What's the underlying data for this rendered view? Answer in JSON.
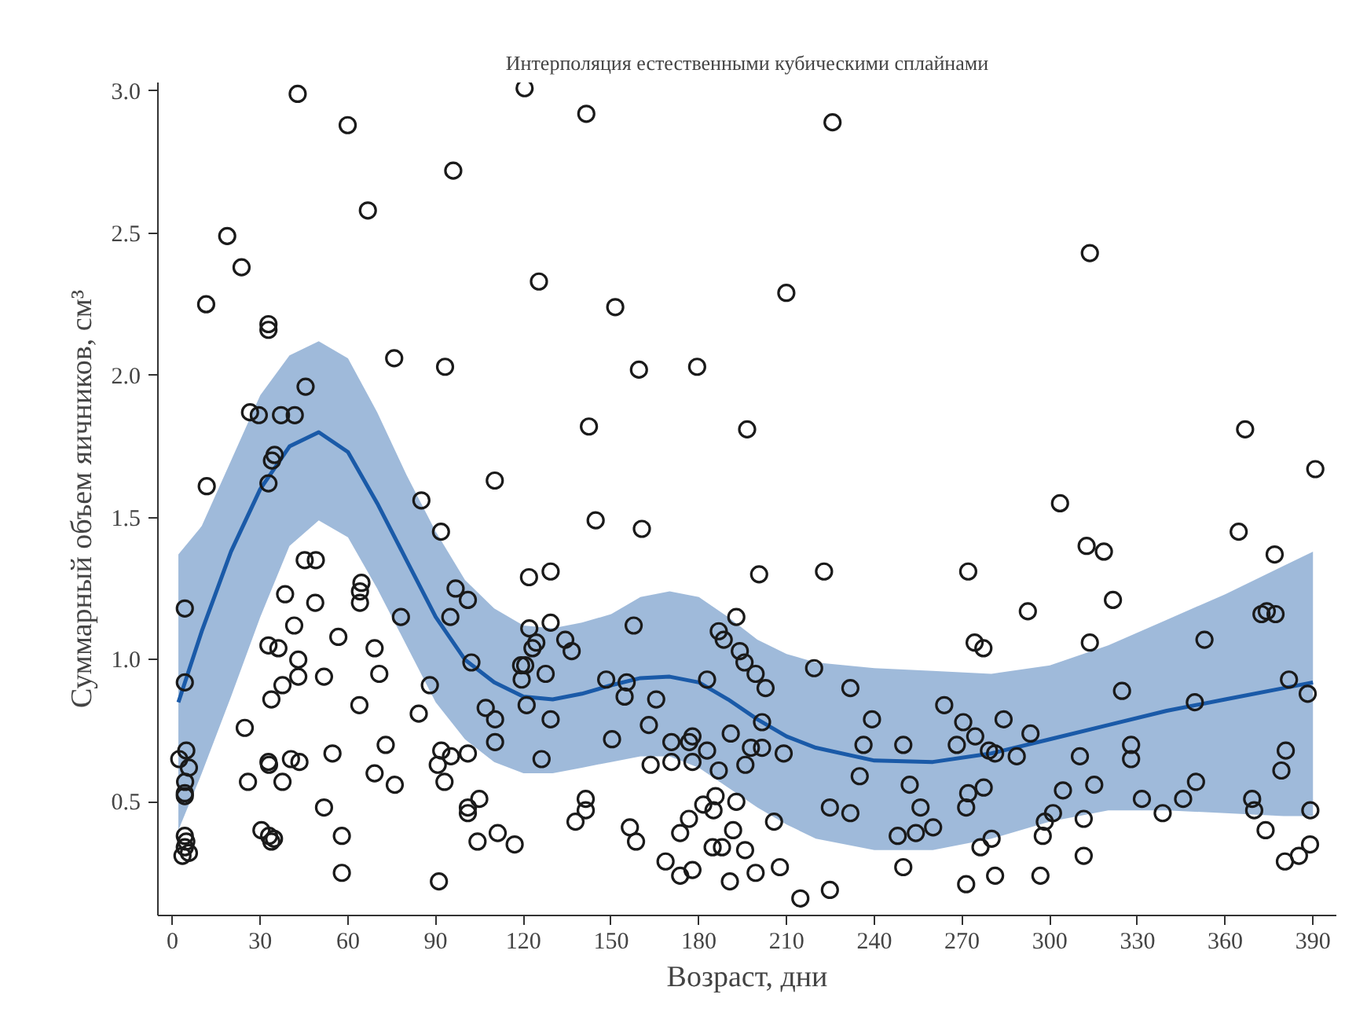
{
  "chart_data": {
    "type": "scatter",
    "title": "Интерполяция естественными кубическими сплайнами",
    "xlabel": "Возраст, дни",
    "ylabel": "Суммарный объем яичников, см³",
    "xlim": [
      -5,
      398
    ],
    "ylim": [
      0.1,
      3.03
    ],
    "xticks": [
      0,
      30,
      60,
      90,
      120,
      150,
      180,
      210,
      240,
      270,
      300,
      330,
      360,
      390
    ],
    "yticks": [
      {
        "value": 0.5,
        "label": "0.5"
      },
      {
        "value": 1,
        "label": "1.0"
      },
      {
        "value": 1.5,
        "label": "1.5"
      },
      {
        "value": 2,
        "label": "2.0"
      },
      {
        "value": 2.5,
        "label": "2.5"
      },
      {
        "value": 3,
        "label": "3.0"
      }
    ],
    "grid": false,
    "series": [
      {
        "type": "line",
        "color": "#1a5aa8",
        "marker": "none",
        "line_style": "solid",
        "x": [
          2,
          10,
          20,
          30,
          40,
          50,
          60,
          70,
          80,
          90,
          100,
          110,
          120,
          130,
          140,
          150,
          160,
          170,
          180,
          190,
          200,
          210,
          220,
          240,
          260,
          280,
          300,
          320,
          340,
          360,
          380,
          390
        ],
        "values": [
          0.85,
          1.1,
          1.38,
          1.6,
          1.75,
          1.8,
          1.73,
          1.55,
          1.35,
          1.15,
          1.0,
          0.92,
          0.87,
          0.86,
          0.88,
          0.91,
          0.935,
          0.94,
          0.92,
          0.86,
          0.79,
          0.73,
          0.69,
          0.645,
          0.64,
          0.67,
          0.72,
          0.77,
          0.82,
          0.86,
          0.9,
          0.92
        ],
        "upper": [
          1.37,
          1.47,
          1.7,
          1.93,
          2.07,
          2.12,
          2.06,
          1.87,
          1.65,
          1.45,
          1.28,
          1.18,
          1.12,
          1.11,
          1.13,
          1.16,
          1.22,
          1.24,
          1.22,
          1.15,
          1.07,
          1.02,
          0.99,
          0.97,
          0.96,
          0.95,
          0.98,
          1.05,
          1.14,
          1.23,
          1.33,
          1.38
        ],
        "lower": [
          0.4,
          0.6,
          0.87,
          1.15,
          1.4,
          1.49,
          1.43,
          1.25,
          1.05,
          0.85,
          0.72,
          0.64,
          0.6,
          0.6,
          0.62,
          0.64,
          0.66,
          0.66,
          0.62,
          0.55,
          0.48,
          0.42,
          0.37,
          0.33,
          0.33,
          0.37,
          0.43,
          0.47,
          0.47,
          0.46,
          0.45,
          0.45
        ]
      },
      {
        "color": "#1a1a1a",
        "marker": "circle",
        "x": [
          42.8,
          59.9,
          120.4,
          96,
          66.8,
          18.7,
          23.6,
          125.3,
          11.5,
          32.8,
          32.8,
          75.8,
          93.2,
          45.5,
          26.5,
          29.5,
          37.1,
          41.8,
          34.9,
          34,
          32.8,
          11.7,
          110.2,
          85.1,
          141.5,
          225.7,
          151.4,
          209.9,
          159.5,
          179.4,
          142.4,
          196.5,
          313.7,
          366.8,
          390.8,
          303.5,
          91.8,
          4.2,
          45.2,
          49,
          38.5,
          48.8,
          64.6,
          64.1,
          64.1,
          78.1,
          96.8,
          101,
          95,
          41.6,
          32.8,
          36.2,
          56.7,
          43,
          69.1,
          102.2,
          4.2,
          43,
          37.6,
          51.8,
          70.7,
          33.8,
          63.9,
          88,
          84.2,
          107.1,
          110.3,
          110.3,
          24.7,
          119.2,
          121.1,
          121.9,
          122,
          124.4,
          123.1,
          120.6,
          119.4,
          126.2,
          2.3,
          4.7,
          5.6,
          4.3,
          4.2,
          4.2,
          32.8,
          33,
          40.5,
          43.4,
          25.8,
          37.6,
          54.7,
          72.9,
          69.1,
          76,
          91.9,
          95.2,
          101,
          90.7,
          93,
          51.8,
          30.4,
          33,
          33.8,
          34.7,
          57.9,
          57.9,
          101,
          101,
          104.9,
          104.3,
          111.2,
          117,
          91.1,
          4.2,
          4.7,
          3.4,
          5.6,
          4.2,
          144.7,
          160.5,
          129.3,
          200.6,
          222.8,
          192.8,
          129.3,
          134.3,
          136.5,
          157.7,
          127.6,
          129.3,
          148.3,
          155.3,
          154.6,
          165.4,
          150.3,
          162.9,
          163.5,
          170.6,
          170.6,
          176.7,
          177.8,
          177.8,
          182.8,
          182.8,
          186.8,
          186.8,
          188.5,
          194,
          195.6,
          199.4,
          202.8,
          201.6,
          190.9,
          197.8,
          201.6,
          195.9,
          209,
          219.4,
          231.8,
          239.2,
          236.3,
          249.9,
          252.1,
          255.8,
          235,
          224.8,
          231.8,
          248,
          254.2,
          249.9,
          141.3,
          141.3,
          137.8,
          156.4,
          158.5,
          168.6,
          173.6,
          177.8,
          173.6,
          176.6,
          181.5,
          185,
          185.7,
          192.8,
          191.7,
          184.7,
          187.9,
          195.8,
          190.6,
          199.4,
          205.7,
          207.7,
          214.7,
          224.8,
          272.1,
          312.6,
          318.5,
          364.6,
          376.9,
          321.6,
          292.5,
          274.3,
          277.3,
          313.7,
          372.4,
          374.2,
          377.2,
          352.9,
          324.7,
          349.6,
          381.8,
          388.2,
          263.9,
          270.4,
          274.5,
          284.2,
          268.2,
          293.4,
          279.2,
          281.3,
          288.7,
          310.3,
          327.8,
          327.8,
          380.7,
          379.2,
          272.1,
          277.4,
          271.4,
          260.1,
          304.5,
          315.2,
          301.1,
          298.3,
          297.6,
          311.6,
          311.6,
          331.5,
          338.6,
          345.6,
          350,
          369.2,
          369.9,
          373.8,
          389.1,
          380.4,
          385.2,
          389,
          276.3,
          280.1,
          281.3,
          271.4,
          296.8
        ],
        "values": [
          2.99,
          2.88,
          3.01,
          2.72,
          2.58,
          2.49,
          2.38,
          2.33,
          2.25,
          2.18,
          2.16,
          2.06,
          2.03,
          1.96,
          1.87,
          1.86,
          1.86,
          1.86,
          1.72,
          1.7,
          1.62,
          1.61,
          1.63,
          1.56,
          2.92,
          2.89,
          2.24,
          2.29,
          2.02,
          2.03,
          1.82,
          1.81,
          2.43,
          1.81,
          1.67,
          1.55,
          1.45,
          1.18,
          1.35,
          1.35,
          1.23,
          1.2,
          1.27,
          1.24,
          1.2,
          1.15,
          1.25,
          1.21,
          1.15,
          1.12,
          1.05,
          1.04,
          1.08,
          1.0,
          1.04,
          0.99,
          0.92,
          0.94,
          0.91,
          0.94,
          0.95,
          0.86,
          0.84,
          0.91,
          0.81,
          0.83,
          0.79,
          0.71,
          0.76,
          0.98,
          0.84,
          1.29,
          1.11,
          1.06,
          1.04,
          0.98,
          0.93,
          0.65,
          0.65,
          0.68,
          0.62,
          0.57,
          0.53,
          0.52,
          0.64,
          0.63,
          0.65,
          0.64,
          0.57,
          0.57,
          0.67,
          0.7,
          0.6,
          0.56,
          0.68,
          0.66,
          0.67,
          0.63,
          0.57,
          0.48,
          0.4,
          0.38,
          0.36,
          0.37,
          0.38,
          0.25,
          0.48,
          0.46,
          0.51,
          0.36,
          0.39,
          0.35,
          0.22,
          0.38,
          0.36,
          0.31,
          0.32,
          0.34,
          1.49,
          1.46,
          1.31,
          1.3,
          1.31,
          1.15,
          1.13,
          1.07,
          1.03,
          1.12,
          0.95,
          0.79,
          0.93,
          0.92,
          0.87,
          0.86,
          0.72,
          0.77,
          0.63,
          0.71,
          0.64,
          0.71,
          0.73,
          0.64,
          0.93,
          0.68,
          0.61,
          1.1,
          1.07,
          1.03,
          0.99,
          0.95,
          0.9,
          0.78,
          0.74,
          0.69,
          0.69,
          0.63,
          0.67,
          0.97,
          0.9,
          0.79,
          0.7,
          0.7,
          0.56,
          0.48,
          0.59,
          0.48,
          0.46,
          0.38,
          0.39,
          0.27,
          0.51,
          0.47,
          0.43,
          0.41,
          0.36,
          0.29,
          0.24,
          0.26,
          0.39,
          0.44,
          0.49,
          0.47,
          0.52,
          0.5,
          0.4,
          0.34,
          0.34,
          0.33,
          0.22,
          0.25,
          0.43,
          0.27,
          0.16,
          0.19,
          1.31,
          1.4,
          1.38,
          1.45,
          1.37,
          1.21,
          1.17,
          1.06,
          1.04,
          1.06,
          1.16,
          1.17,
          1.16,
          1.07,
          0.89,
          0.85,
          0.93,
          0.88,
          0.84,
          0.78,
          0.73,
          0.79,
          0.7,
          0.74,
          0.68,
          0.67,
          0.66,
          0.66,
          0.7,
          0.65,
          0.68,
          0.61,
          0.53,
          0.55,
          0.48,
          0.41,
          0.54,
          0.56,
          0.46,
          0.43,
          0.38,
          0.44,
          0.31,
          0.51,
          0.46,
          0.51,
          0.57,
          0.51,
          0.47,
          0.4,
          0.47,
          0.29,
          0.31,
          0.35,
          0.34,
          0.37,
          0.24,
          0.21,
          0.24
        ]
      }
    ]
  }
}
